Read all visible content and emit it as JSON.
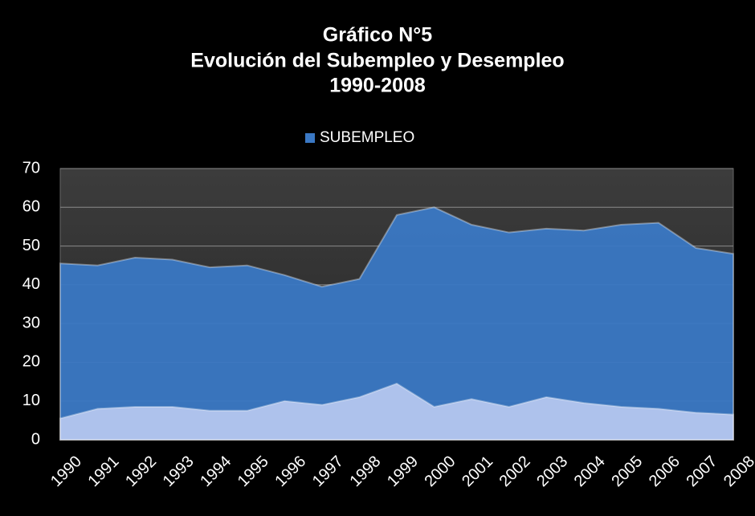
{
  "chart_data": {
    "type": "area",
    "title": [
      "Gráfico N°5",
      "Evolución del Subempleo y Desempleo",
      "1990-2008"
    ],
    "categories": [
      "1990",
      "1991",
      "1992",
      "1993",
      "1994",
      "1995",
      "1996",
      "1997",
      "1998",
      "1999",
      "2000",
      "2001",
      "2002",
      "2003",
      "2004",
      "2005",
      "2006",
      "2007",
      "2008"
    ],
    "series": [
      {
        "name": "SUBEMPLEO",
        "color": "#3a78c4",
        "values": [
          45.5,
          45,
          47,
          46.5,
          44.5,
          45,
          42.5,
          39.5,
          41.5,
          58,
          60,
          55.5,
          53.5,
          54.5,
          54,
          55.5,
          56,
          49.5,
          48
        ]
      },
      {
        "color": "#b4c6ee",
        "values": [
          5.5,
          8,
          8.5,
          8.5,
          7.5,
          7.5,
          10,
          9,
          11,
          14.5,
          8.5,
          10.5,
          8.5,
          11,
          9.5,
          8.5,
          8,
          7,
          6.5
        ]
      }
    ],
    "ylim": [
      0,
      70
    ],
    "yticks": [
      0,
      10,
      20,
      30,
      40,
      50,
      60,
      70
    ],
    "grid": true,
    "legend": "top"
  }
}
